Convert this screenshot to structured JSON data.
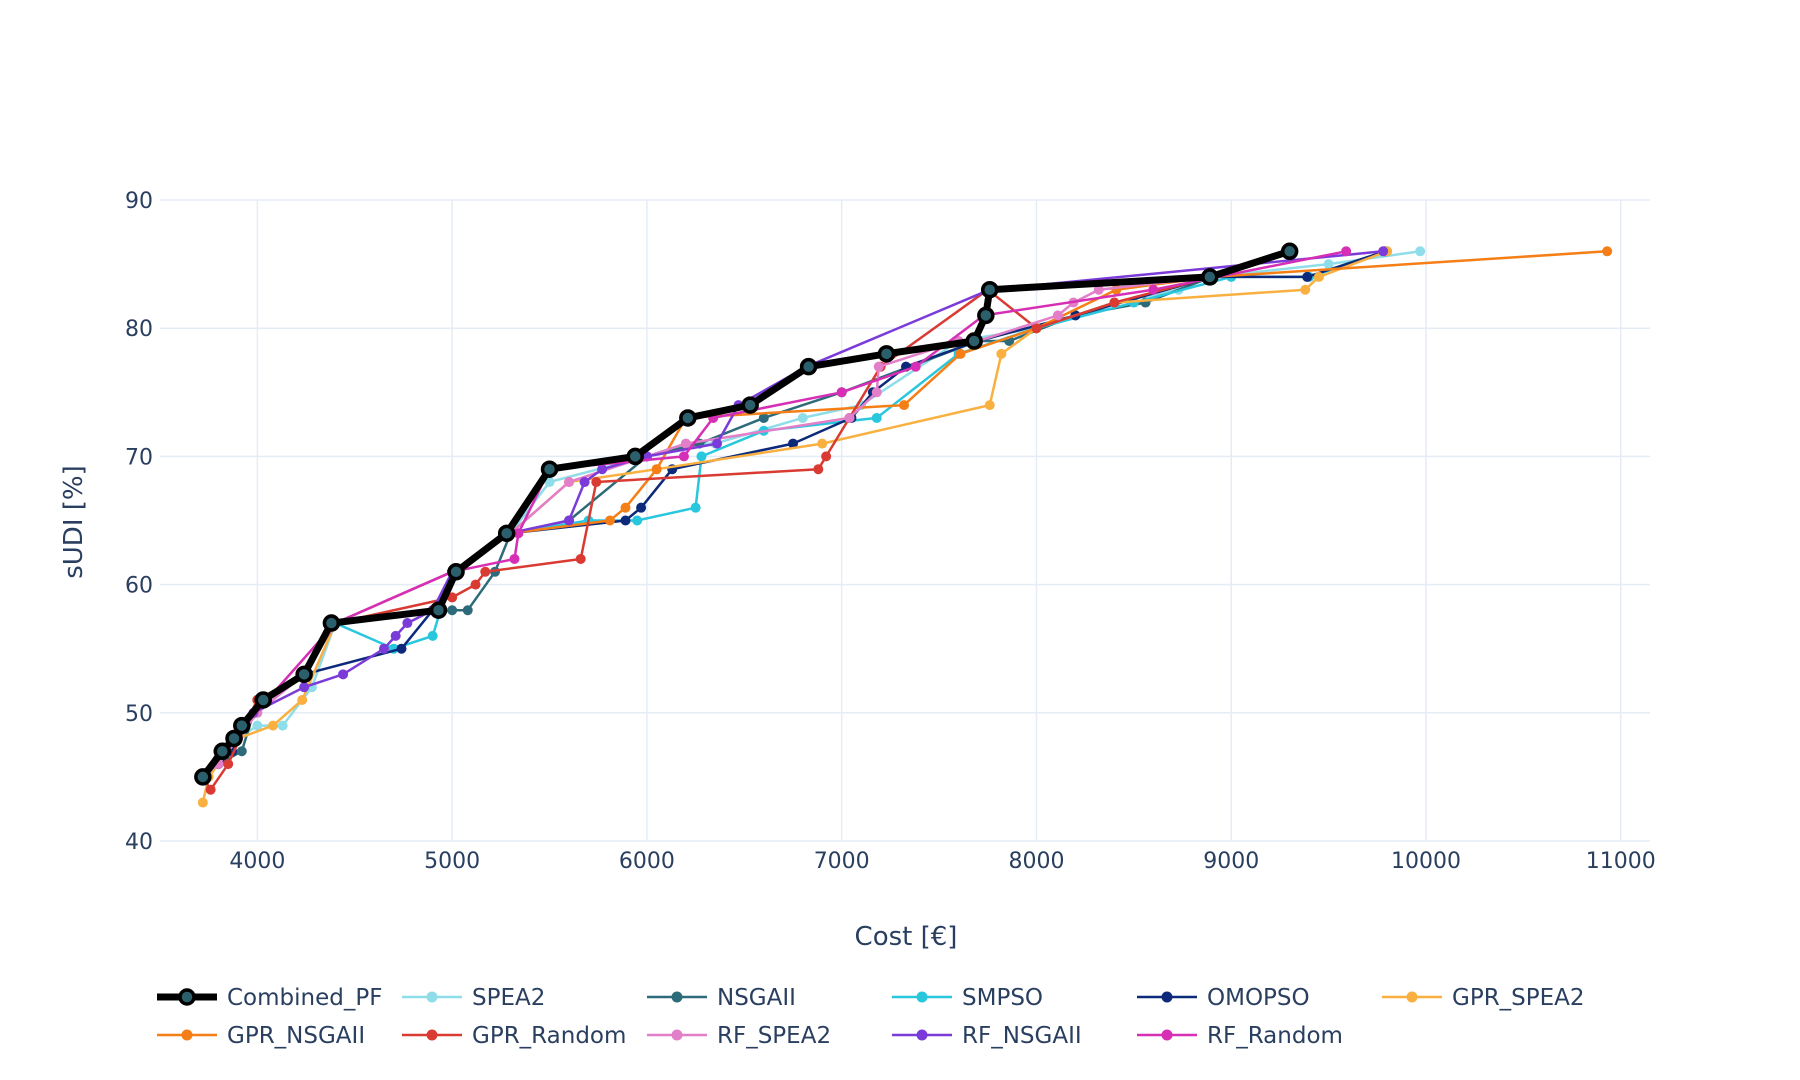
{
  "chart_data": {
    "type": "line",
    "xlabel": "Cost [€]",
    "ylabel": "sUDI [%]",
    "xlim": [
      3500,
      11150
    ],
    "ylim": [
      40,
      90
    ],
    "x_ticks": [
      4000,
      5000,
      6000,
      7000,
      8000,
      9000,
      10000,
      11000
    ],
    "y_ticks": [
      40,
      50,
      60,
      70,
      80,
      90
    ],
    "grid": true,
    "legend_position": "bottom",
    "series": [
      {
        "name": "SPEA2",
        "color": "#8fdde8",
        "points": [
          [
            3720,
            45
          ],
          [
            3800,
            46
          ],
          [
            3900,
            48
          ],
          [
            4000,
            49
          ],
          [
            4130,
            49
          ],
          [
            4280,
            52
          ],
          [
            4400,
            57
          ],
          [
            5000,
            61
          ],
          [
            5300,
            64
          ],
          [
            5500,
            68
          ],
          [
            6000,
            70
          ],
          [
            6200,
            71
          ],
          [
            6350,
            71
          ],
          [
            6800,
            73
          ],
          [
            7100,
            74
          ],
          [
            7600,
            79
          ],
          [
            8000,
            80
          ],
          [
            8400,
            82
          ],
          [
            8730,
            83
          ],
          [
            8900,
            84
          ],
          [
            9500,
            85
          ],
          [
            9970,
            86
          ]
        ]
      },
      {
        "name": "NSGAII",
        "color": "#2e6b7a",
        "points": [
          [
            3720,
            45
          ],
          [
            3800,
            46
          ],
          [
            3920,
            47
          ],
          [
            4000,
            51
          ],
          [
            4240,
            53
          ],
          [
            4400,
            57
          ],
          [
            5000,
            58
          ],
          [
            5080,
            58
          ],
          [
            5220,
            61
          ],
          [
            5300,
            64
          ],
          [
            5600,
            65
          ],
          [
            6000,
            70
          ],
          [
            6270,
            71
          ],
          [
            6600,
            73
          ],
          [
            7000,
            75
          ],
          [
            7700,
            79
          ],
          [
            7860,
            79
          ],
          [
            8200,
            81
          ],
          [
            8560,
            82
          ],
          [
            8900,
            84
          ],
          [
            9300,
            86
          ]
        ]
      },
      {
        "name": "SMPSO",
        "color": "#29c7de",
        "points": [
          [
            3720,
            45
          ],
          [
            3800,
            47
          ],
          [
            3900,
            48
          ],
          [
            4000,
            51
          ],
          [
            4240,
            53
          ],
          [
            4400,
            57
          ],
          [
            4700,
            55
          ],
          [
            4900,
            56
          ],
          [
            5000,
            61
          ],
          [
            5300,
            64
          ],
          [
            5700,
            65
          ],
          [
            5950,
            65
          ],
          [
            6250,
            66
          ],
          [
            6280,
            70
          ],
          [
            6600,
            72
          ],
          [
            7180,
            73
          ],
          [
            7600,
            78
          ],
          [
            8000,
            80
          ],
          [
            8500,
            82
          ],
          [
            9000,
            84
          ],
          [
            9400,
            84
          ],
          [
            9800,
            86
          ]
        ]
      },
      {
        "name": "OMOPSO",
        "color": "#0d2a7a",
        "points": [
          [
            3720,
            45
          ],
          [
            3800,
            46
          ],
          [
            3870,
            47
          ],
          [
            4000,
            51
          ],
          [
            4240,
            53
          ],
          [
            4740,
            55
          ],
          [
            4900,
            58
          ],
          [
            5000,
            61
          ],
          [
            5300,
            64
          ],
          [
            5890,
            65
          ],
          [
            5970,
            66
          ],
          [
            6130,
            69
          ],
          [
            6750,
            71
          ],
          [
            7050,
            73
          ],
          [
            7160,
            75
          ],
          [
            7330,
            77
          ],
          [
            7700,
            79
          ],
          [
            8200,
            81
          ],
          [
            8900,
            84
          ],
          [
            9390,
            84
          ],
          [
            9790,
            86
          ]
        ]
      },
      {
        "name": "GPR_SPEA2",
        "color": "#f9b040",
        "points": [
          [
            3720,
            43
          ],
          [
            3750,
            45
          ],
          [
            3900,
            48
          ],
          [
            4080,
            49
          ],
          [
            4230,
            51
          ],
          [
            4400,
            57
          ],
          [
            5000,
            61
          ],
          [
            5300,
            64
          ],
          [
            5600,
            68
          ],
          [
            6050,
            69
          ],
          [
            6900,
            71
          ],
          [
            7760,
            74
          ],
          [
            7820,
            78
          ],
          [
            8000,
            80
          ],
          [
            8400,
            82
          ],
          [
            9380,
            83
          ],
          [
            9450,
            84
          ],
          [
            9800,
            86
          ]
        ]
      },
      {
        "name": "GPR_NSGAII",
        "color": "#f57f16",
        "points": [
          [
            3720,
            45
          ],
          [
            3800,
            47
          ],
          [
            3900,
            48
          ],
          [
            4000,
            51
          ],
          [
            4240,
            53
          ],
          [
            4400,
            57
          ],
          [
            4950,
            58
          ],
          [
            5000,
            61
          ],
          [
            5300,
            64
          ],
          [
            5810,
            65
          ],
          [
            5890,
            66
          ],
          [
            6050,
            69
          ],
          [
            6200,
            73
          ],
          [
            7320,
            74
          ],
          [
            7610,
            78
          ],
          [
            8000,
            80
          ],
          [
            8410,
            83
          ],
          [
            8900,
            84
          ],
          [
            10930,
            86
          ]
        ]
      },
      {
        "name": "GPR_Random",
        "color": "#d93b32",
        "points": [
          [
            3720,
            45
          ],
          [
            3760,
            44
          ],
          [
            3850,
            46
          ],
          [
            4000,
            51
          ],
          [
            4240,
            53
          ],
          [
            4400,
            57
          ],
          [
            5000,
            59
          ],
          [
            5120,
            60
          ],
          [
            5170,
            61
          ],
          [
            5660,
            62
          ],
          [
            5740,
            68
          ],
          [
            6880,
            69
          ],
          [
            6920,
            70
          ],
          [
            7040,
            73
          ],
          [
            7200,
            77
          ],
          [
            7750,
            83
          ],
          [
            8000,
            80
          ],
          [
            8400,
            82
          ],
          [
            8900,
            84
          ],
          [
            9300,
            86
          ]
        ]
      },
      {
        "name": "RF_SPEA2",
        "color": "#e37fc9",
        "points": [
          [
            3720,
            45
          ],
          [
            3800,
            46
          ],
          [
            3900,
            48
          ],
          [
            4000,
            50
          ],
          [
            4240,
            53
          ],
          [
            4400,
            57
          ],
          [
            5000,
            61
          ],
          [
            5300,
            64
          ],
          [
            5600,
            68
          ],
          [
            6000,
            70
          ],
          [
            6200,
            71
          ],
          [
            7040,
            73
          ],
          [
            7180,
            75
          ],
          [
            7190,
            77
          ],
          [
            7600,
            79
          ],
          [
            7700,
            79
          ],
          [
            8110,
            81
          ],
          [
            8190,
            82
          ],
          [
            8320,
            83
          ],
          [
            8900,
            84
          ],
          [
            9300,
            86
          ]
        ]
      },
      {
        "name": "RF_NSGAII",
        "color": "#7b3bd9",
        "points": [
          [
            3720,
            45
          ],
          [
            3820,
            47
          ],
          [
            3900,
            48
          ],
          [
            3980,
            50
          ],
          [
            4240,
            52
          ],
          [
            4440,
            53
          ],
          [
            4650,
            55
          ],
          [
            4710,
            56
          ],
          [
            4770,
            57
          ],
          [
            4900,
            58
          ],
          [
            5000,
            61
          ],
          [
            5290,
            64
          ],
          [
            5600,
            65
          ],
          [
            5680,
            68
          ],
          [
            5770,
            69
          ],
          [
            6000,
            70
          ],
          [
            6360,
            71
          ],
          [
            6470,
            74
          ],
          [
            6820,
            77
          ],
          [
            7760,
            83
          ],
          [
            9780,
            86
          ]
        ]
      },
      {
        "name": "RF_Random",
        "color": "#d62fb5",
        "points": [
          [
            3720,
            45
          ],
          [
            3800,
            47
          ],
          [
            3880,
            48
          ],
          [
            4050,
            51
          ],
          [
            4400,
            57
          ],
          [
            5000,
            61
          ],
          [
            5320,
            62
          ],
          [
            5340,
            64
          ],
          [
            5500,
            69
          ],
          [
            6190,
            70
          ],
          [
            6340,
            73
          ],
          [
            7000,
            75
          ],
          [
            7380,
            77
          ],
          [
            7730,
            81
          ],
          [
            8600,
            83
          ],
          [
            9590,
            86
          ]
        ]
      },
      {
        "name": "Combined_PF",
        "color": "#000000",
        "combined": true,
        "points": [
          [
            3720,
            45
          ],
          [
            3820,
            47
          ],
          [
            3880,
            48
          ],
          [
            3920,
            49
          ],
          [
            4030,
            51
          ],
          [
            4240,
            53
          ],
          [
            4380,
            57
          ],
          [
            4930,
            58
          ],
          [
            5020,
            61
          ],
          [
            5280,
            64
          ],
          [
            5500,
            69
          ],
          [
            5940,
            70
          ],
          [
            6210,
            73
          ],
          [
            6530,
            74
          ],
          [
            6830,
            77
          ],
          [
            7230,
            78
          ],
          [
            7680,
            79
          ],
          [
            7740,
            81
          ],
          [
            7760,
            83
          ],
          [
            8890,
            84
          ],
          [
            9300,
            86
          ]
        ]
      }
    ],
    "legend_rows": [
      [
        "Combined_PF",
        "SPEA2",
        "NSGAII",
        "SMPSO",
        "OMOPSO",
        "GPR_SPEA2"
      ],
      [
        "GPR_NSGAII",
        "GPR_Random",
        "RF_SPEA2",
        "RF_NSGAII",
        "RF_Random"
      ]
    ]
  }
}
